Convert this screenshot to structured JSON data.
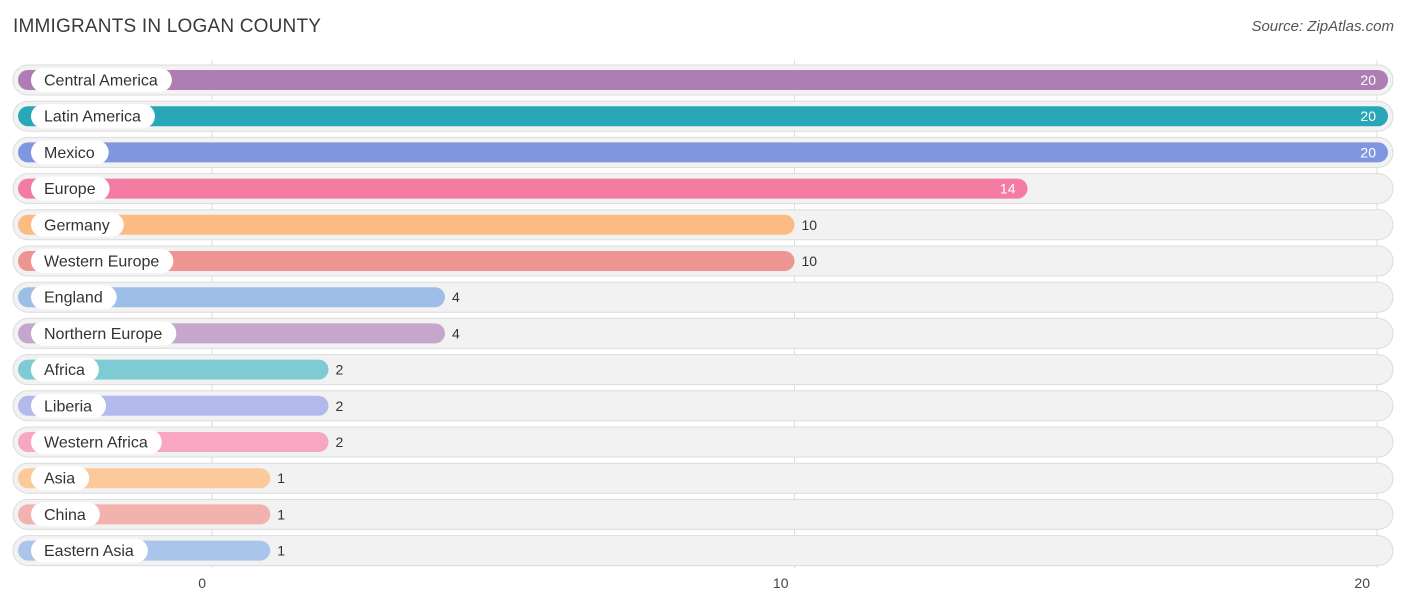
{
  "title": "IMMIGRANTS IN LOGAN COUNTY",
  "source": "Source: ZipAtlas.com",
  "chart_data": {
    "type": "bar",
    "orientation": "horizontal",
    "title": "IMMIGRANTS IN LOGAN COUNTY",
    "xlabel": "",
    "ylabel": "",
    "xlim": [
      0,
      20
    ],
    "ticks": [
      0,
      10,
      20
    ],
    "grid": true,
    "categories": [
      "Central America",
      "Latin America",
      "Mexico",
      "Europe",
      "Germany",
      "Western Europe",
      "England",
      "Northern Europe",
      "Africa",
      "Liberia",
      "Western Africa",
      "Asia",
      "China",
      "Eastern Asia"
    ],
    "values": [
      20,
      20,
      20,
      14,
      10,
      10,
      4,
      4,
      2,
      2,
      2,
      1,
      1,
      1
    ],
    "colors": [
      "#ae7db4",
      "#27a7b8",
      "#8196e0",
      "#f47ba2",
      "#fbbb83",
      "#ee9591",
      "#9dbfe7",
      "#c6a6cc",
      "#7ecbd4",
      "#b3b9ea",
      "#f7a7c2",
      "#fcc99b",
      "#f2b2ad",
      "#a9c6ea"
    ]
  }
}
